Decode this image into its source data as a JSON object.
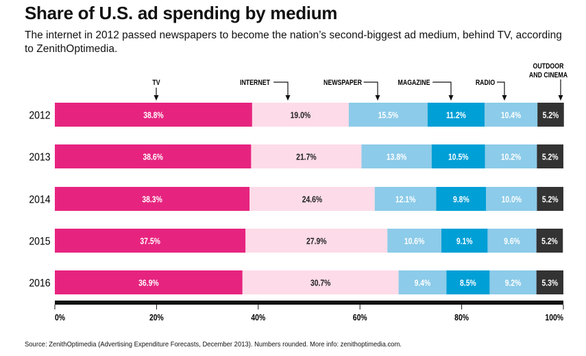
{
  "chart_data": {
    "type": "bar",
    "stacked": true,
    "orientation": "horizontal",
    "title": "Share of U.S. ad spending by medium",
    "subtitle": "The internet in 2012 passed newspapers to become the nation’s second-biggest ad medium, behind TV, according to ZenithOptimedia.",
    "categories": [
      "2012",
      "2013",
      "2014",
      "2015",
      "2016"
    ],
    "series": [
      {
        "name": "TV",
        "color": "#e6247f",
        "text_color": "#ffffff",
        "values": [
          38.8,
          38.6,
          38.3,
          37.5,
          36.9
        ]
      },
      {
        "name": "INTERNET",
        "color": "#fddbe8",
        "text_color": "#222222",
        "values": [
          19.0,
          21.7,
          24.6,
          27.9,
          30.7
        ]
      },
      {
        "name": "NEWSPAPER",
        "color": "#8ccbe9",
        "text_color": "#ffffff",
        "values": [
          15.5,
          13.8,
          12.1,
          10.6,
          9.4
        ]
      },
      {
        "name": "MAGAZINE",
        "color": "#009fd6",
        "text_color": "#ffffff",
        "values": [
          11.2,
          10.5,
          9.8,
          9.1,
          8.5
        ]
      },
      {
        "name": "RADIO",
        "color": "#8ccbe9",
        "text_color": "#ffffff",
        "values": [
          10.4,
          10.2,
          10.0,
          9.6,
          9.2
        ]
      },
      {
        "name": "OUTDOOR AND CINEMA",
        "color": "#333333",
        "text_color": "#ffffff",
        "values": [
          5.2,
          5.2,
          5.2,
          5.2,
          5.3
        ]
      }
    ],
    "value_labels": [
      [
        "38.8%",
        "19.0%",
        "15.5%",
        "11.2%",
        "10.4%",
        "5.2%"
      ],
      [
        "38.6%",
        "21.7%",
        "13.8%",
        "10.5%",
        "10.2%",
        "5.2%"
      ],
      [
        "38.3%",
        "24.6%",
        "12.1%",
        "9.8%",
        "10.0%",
        "5.2%"
      ],
      [
        "37.5%",
        "27.9%",
        "10.6%",
        "9.1%",
        "9.6%",
        "5.2%"
      ],
      [
        "36.9%",
        "30.7%",
        "9.4%",
        "8.5%",
        "9.2%",
        "5.3%"
      ]
    ],
    "xlim": [
      0,
      100
    ],
    "xticks": [
      0,
      20,
      40,
      60,
      80,
      100
    ],
    "xtick_labels": [
      "0%",
      "20%",
      "40%",
      "60%",
      "80%",
      "100%"
    ],
    "legend": "top, labels with arrows above first row"
  },
  "source": "Source: ZenithOptimedia (Advertising Expenditure Forecasts, December 2013). Numbers rounded. More info: zenithoptimedia.com."
}
